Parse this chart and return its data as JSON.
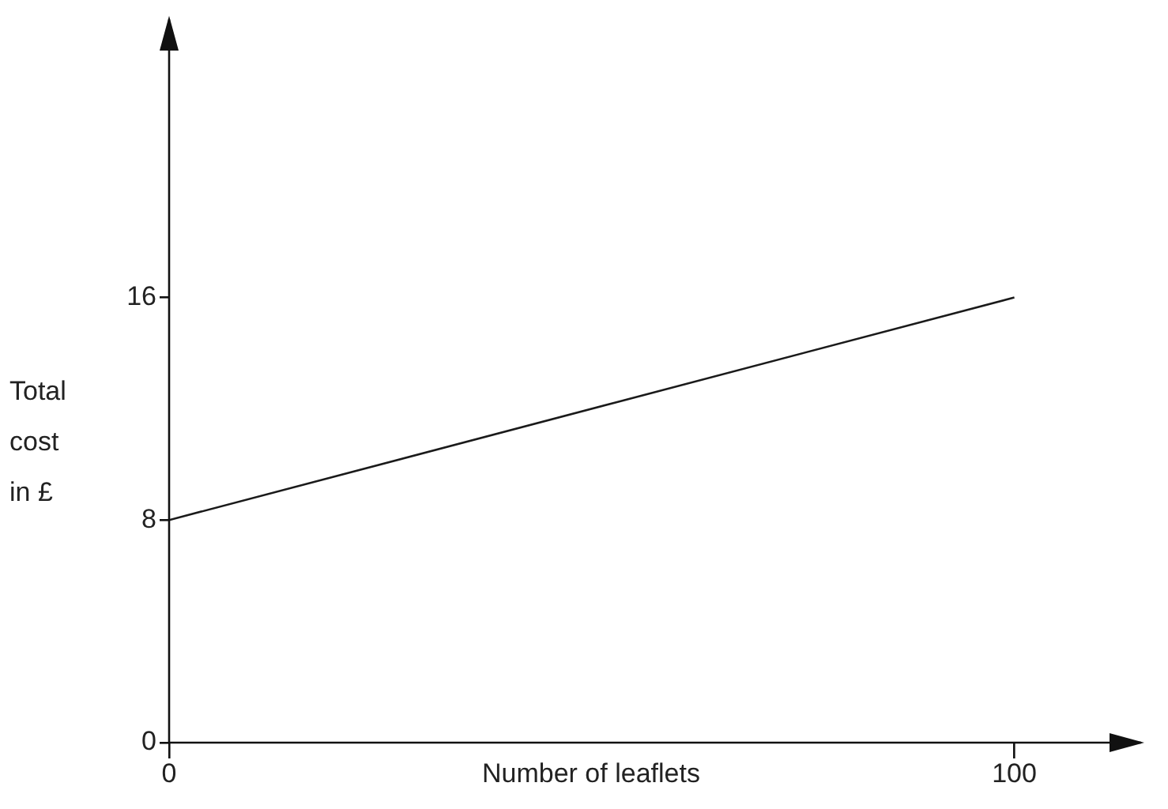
{
  "chart_data": {
    "type": "line",
    "xlabel": "Number of leaflets",
    "ylabel": "Total cost in £",
    "x": [
      0,
      100
    ],
    "series": [
      {
        "color": "#1a1a1a",
        "values": [
          8,
          16
        ]
      }
    ],
    "xlim": [
      0,
      115
    ],
    "xticks": [
      0,
      100
    ],
    "ylim": [
      0,
      26
    ],
    "yticks": [
      0,
      8,
      16
    ],
    "grid": false,
    "legend": false,
    "marker": "none",
    "line_style": "solid"
  }
}
